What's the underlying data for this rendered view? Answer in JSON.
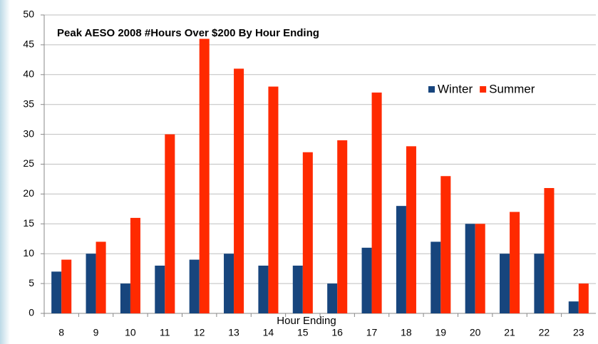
{
  "chart_data": {
    "type": "bar",
    "title": "Peak AESO 2008 #Hours Over $200 By Hour Ending",
    "x_label": "Hour Ending",
    "categories": [
      "8",
      "9",
      "10",
      "11",
      "12",
      "13",
      "14",
      "15",
      "16",
      "17",
      "18",
      "19",
      "20",
      "21",
      "22",
      "23"
    ],
    "series": [
      {
        "name": "Winter",
        "color": "#17457d",
        "values": [
          7,
          10,
          5,
          8,
          9,
          10,
          8,
          8,
          5,
          11,
          18,
          12,
          15,
          10,
          10,
          2
        ]
      },
      {
        "name": "Summer",
        "color": "#ff2a00",
        "values": [
          9,
          12,
          16,
          30,
          46,
          41,
          38,
          27,
          29,
          37,
          28,
          23,
          15,
          17,
          21,
          5
        ]
      }
    ],
    "ylim": [
      0,
      50
    ],
    "yticks": [
      0,
      5,
      10,
      15,
      20,
      25,
      30,
      35,
      40,
      45,
      50
    ],
    "grid": true,
    "legend": "upper-right"
  }
}
